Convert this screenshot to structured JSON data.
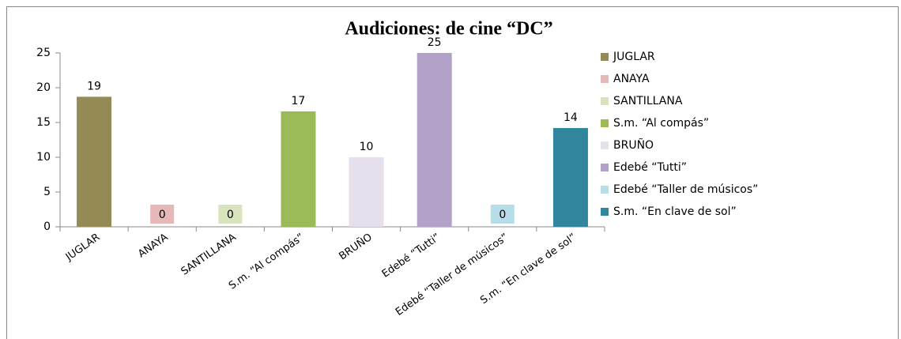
{
  "chart_data": {
    "type": "bar",
    "title": "Audiciones: de cine “DC”",
    "categories": [
      "JUGLAR",
      "ANAYA",
      "SANTILLANA",
      "S.m. “Al compás”",
      "BRUÑO",
      "Edebé “Tutti”",
      "Edebé “Taller de músicos”",
      "S.m. “En clave de sol”"
    ],
    "values": [
      18.7,
      0,
      0,
      16.6,
      10,
      25,
      0,
      14.2
    ],
    "value_labels": [
      "19",
      "0",
      "0",
      "17",
      "10",
      "25",
      "0",
      "14"
    ],
    "colors": [
      "#948a54",
      "#e6b9b8",
      "#d7e4bd",
      "#9bbb59",
      "#e6e0ec",
      "#b3a2c7",
      "#b7dee8",
      "#31859c"
    ],
    "ylim": [
      0,
      25
    ],
    "yticks": [
      0,
      5,
      10,
      15,
      20,
      25
    ],
    "grid": false,
    "legend": "right"
  }
}
